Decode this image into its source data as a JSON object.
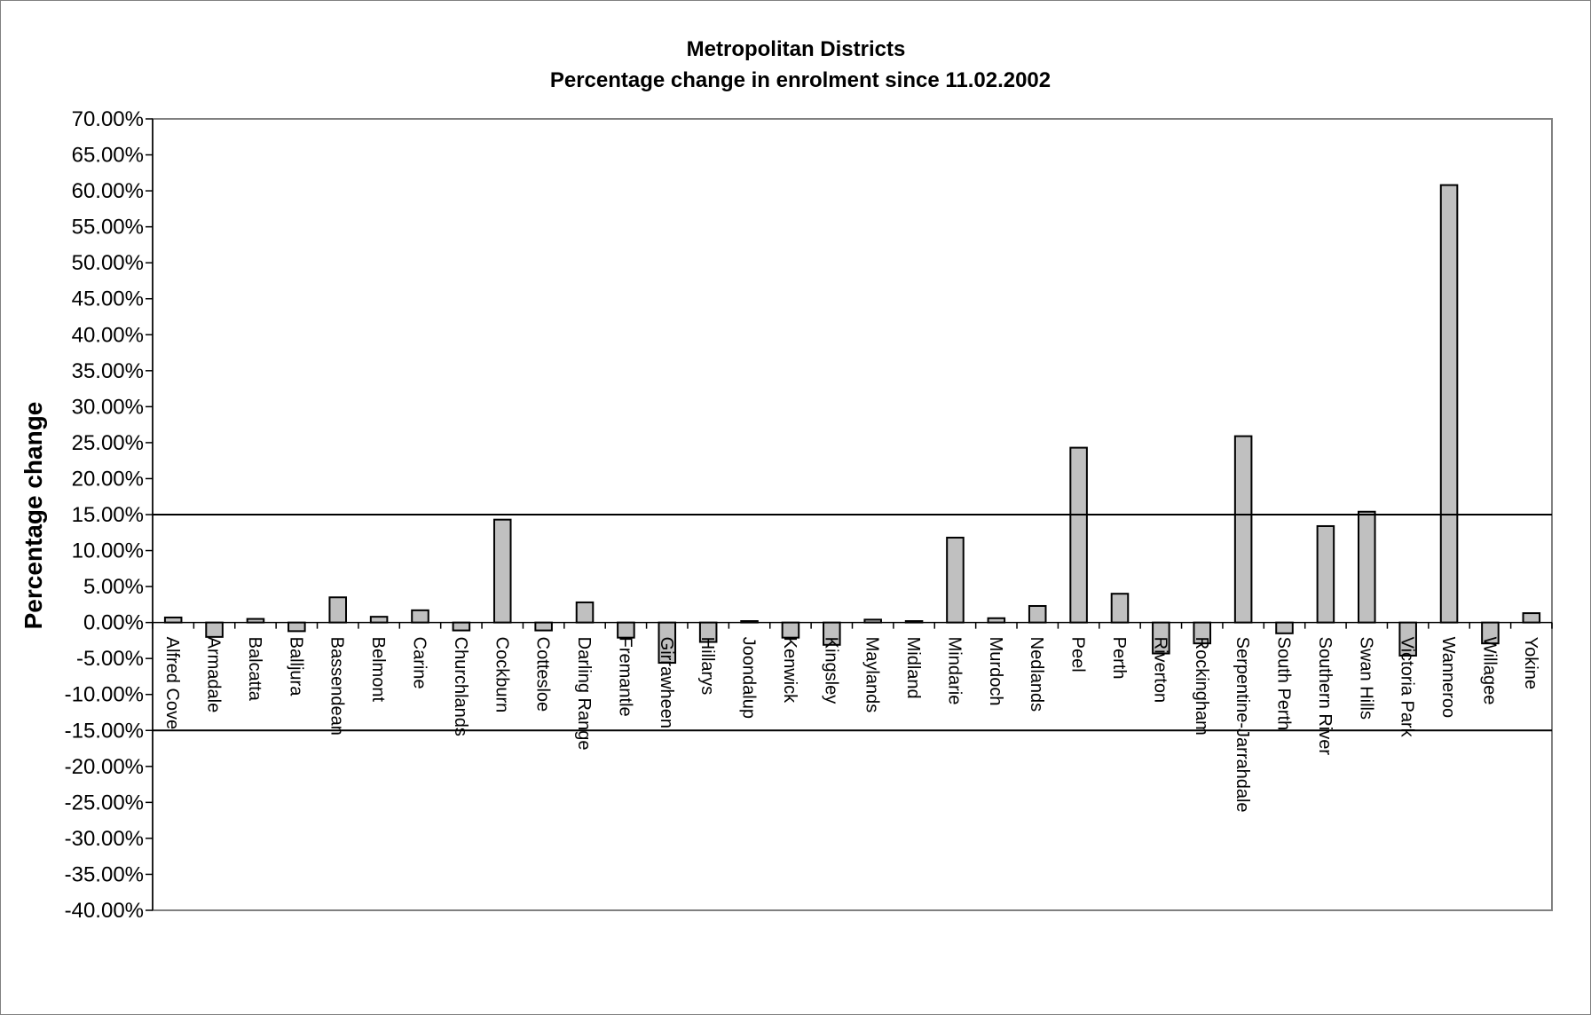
{
  "chart_data": {
    "type": "bar",
    "title": "Metropolitan Districts",
    "subtitle": "Percentage change in enrolment since 11.02.2002",
    "xlabel": "",
    "ylabel": "Percentage change",
    "ylim": [
      -40,
      70
    ],
    "ytick_step": 5,
    "ytick_labels": [
      "70.00%",
      "65.00%",
      "60.00%",
      "55.00%",
      "50.00%",
      "45.00%",
      "40.00%",
      "35.00%",
      "30.00%",
      "25.00%",
      "20.00%",
      "15.00%",
      "10.00%",
      "5.00%",
      "0.00%",
      "-5.00%",
      "-10.00%",
      "-15.00%",
      "-20.00%",
      "-25.00%",
      "-30.00%",
      "-35.00%",
      "-40.00%"
    ],
    "grid": false,
    "reference_lines": [
      15,
      -15
    ],
    "bar_color": "#c0c0c0",
    "bar_edge_color": "#000000",
    "plot_border_color": "#808080",
    "categories": [
      "Alfred Cove",
      "Armadale",
      "Balcatta",
      "Balljura",
      "Bassendean",
      "Belmont",
      "Carine",
      "Churchlands",
      "Cockburn",
      "Cottesloe",
      "Darling Range",
      "Fremantle",
      "Girrawheen",
      "Hillarys",
      "Joondalup",
      "Kenwick",
      "Kingsley",
      "Maylands",
      "Midland",
      "Mindarie",
      "Murdoch",
      "Nedlands",
      "Peel",
      "Perth",
      "Riverton",
      "Rockingham",
      "Serpentine-Jarrahdale",
      "South Perth",
      "Southern River",
      "Swan Hills",
      "Victoria Park",
      "Wanneroo",
      "Willagee",
      "Yokine"
    ],
    "values": [
      0.7,
      -2.0,
      0.5,
      -1.2,
      3.5,
      0.8,
      1.7,
      -1.1,
      14.3,
      -1.1,
      2.8,
      -2.1,
      -5.6,
      -2.7,
      0.2,
      -2.1,
      -3.1,
      0.4,
      0.2,
      11.8,
      0.6,
      2.3,
      24.3,
      4.0,
      -4.3,
      -2.9,
      25.9,
      -1.5,
      13.4,
      15.4,
      -4.6,
      60.8,
      -2.9,
      1.3
    ]
  }
}
